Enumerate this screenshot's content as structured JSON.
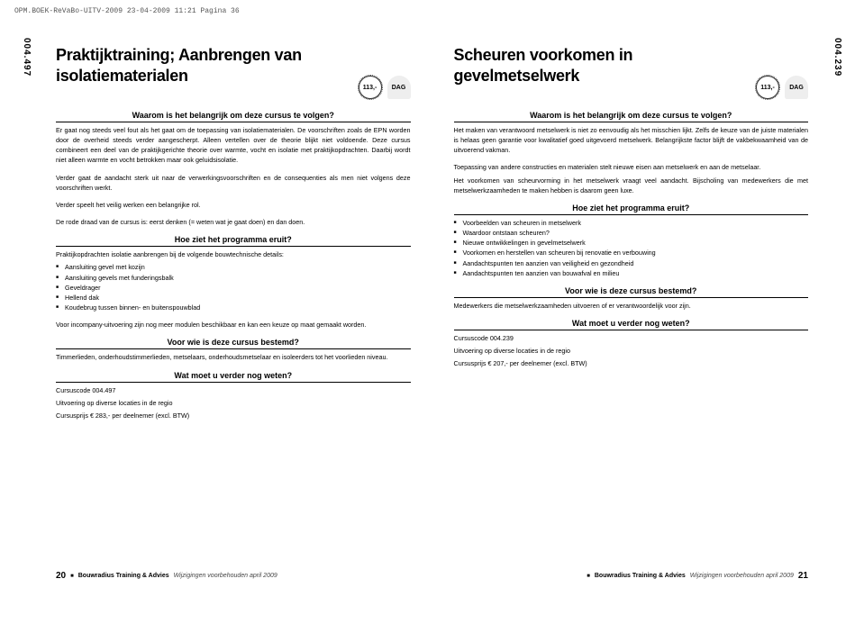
{
  "header": "OPM.BOEK-ReVaBo-UITV-2009  23-04-2009  11:21  Pagina 36",
  "left": {
    "sideCode": "004.497",
    "title": "Praktijktraining; Aanbrengen van isolatiematerialen",
    "price": "113,-",
    "dag": "DAG",
    "sec1h": "Waarom is het belangrijk om deze cursus te volgen?",
    "sec1p1": "Er gaat nog steeds veel fout als het gaat om de toepassing van isolatiematerialen. De voorschriften zoals de EPN worden door de overheid steeds verder aangescherpt. Alleen vertellen over de theorie blijkt niet voldoende. Deze cursus combineert een deel van de praktijkgerichte theorie over warmte, vocht en isolatie met praktijkopdrachten. Daarbij wordt niet alleen warmte en vocht betrokken maar ook geluidsisolatie.",
    "sec1p2": "Verder gaat de aandacht sterk uit naar de verwerkingsvoorschriften en de consequenties als men niet volgens deze voorschriften werkt.",
    "sec1p3": "Verder speelt het veilig werken een belangrijke rol.",
    "sec1p4": "De rode draad van de cursus is: eerst denken (= weten wat je gaat doen) en dan doen.",
    "sec2h": "Hoe ziet het programma eruit?",
    "sec2intro": "Praktijkopdrachten isolatie aanbrengen bij de volgende bouwtechnische details:",
    "sec2items": [
      "Aansluiting gevel met kozijn",
      "Aansluiting gevels met funderingsbalk",
      "Geveldrager",
      "Hellend dak",
      "Koudebrug tussen binnen- en buitenspouwblad"
    ],
    "sec2out": "Voor incompany-uitvoering zijn nog meer modulen beschikbaar en kan een keuze op maat gemaakt worden.",
    "sec3h": "Voor wie is deze cursus bestemd?",
    "sec3p": "Timmerlieden, onderhoudstimmerlieden, metselaars, onderhoudsmetselaar en isoleerders tot het voorlieden niveau.",
    "sec4h": "Wat moet u verder nog weten?",
    "sec4l1": "Cursuscode 004.497",
    "sec4l2": "Uitvoering op diverse locaties in de regio",
    "sec4l3": "Cursusprijs € 283,- per deelnemer (excl. BTW)",
    "pageNum": "20"
  },
  "right": {
    "sideCode": "004.239",
    "title": "Scheuren voorkomen in gevelmetselwerk",
    "price": "113,-",
    "dag": "DAG",
    "sec1h": "Waarom is het belangrijk om deze cursus te volgen?",
    "sec1p1": "Het maken van verantwoord metselwerk is niet zo eenvoudig als het misschien lijkt. Zelfs de keuze van de juiste materialen is helaas geen garantie voor kwalitatief goed uitgevoerd metselwerk. Belangrijkste factor blijft de vakbekwaamheid van de uitvoerend vakman.",
    "sec1p2": "Toepassing van andere constructies en materialen stelt nieuwe eisen aan metselwerk en aan de metselaar.",
    "sec1p3": "Het voorkomen van scheurvorming in het metselwerk vraagt veel aandacht. Bijscholing van medewerkers die met metselwerkzaamheden te maken hebben is daarom geen luxe.",
    "sec2h": "Hoe ziet het programma eruit?",
    "sec2items": [
      "Voorbeelden van scheuren in metselwerk",
      "Waardoor ontstaan scheuren?",
      "Nieuwe ontwikkelingen in gevelmetselwerk",
      "Voorkomen en herstellen van scheuren bij renovatie en verbouwing",
      "Aandachtspunten ten aanzien van veiligheid en gezondheid",
      "Aandachtspunten ten aanzien van bouwafval en milieu"
    ],
    "sec3h": "Voor wie is deze cursus bestemd?",
    "sec3p": "Medewerkers die metselwerkzaamheden uitvoeren of er verantwoordelijk voor zijn.",
    "sec4h": "Wat moet u verder nog weten?",
    "sec4l1": "Cursuscode 004.239",
    "sec4l2": "Uitvoering op diverse locaties in de regio",
    "sec4l3": "Cursusprijs € 207,- per deelnemer (excl. BTW)",
    "pageNum": "21"
  },
  "footer": {
    "company": "Bouwradius Training & Advies",
    "note": "Wijzigingen voorbehouden april 2009"
  }
}
